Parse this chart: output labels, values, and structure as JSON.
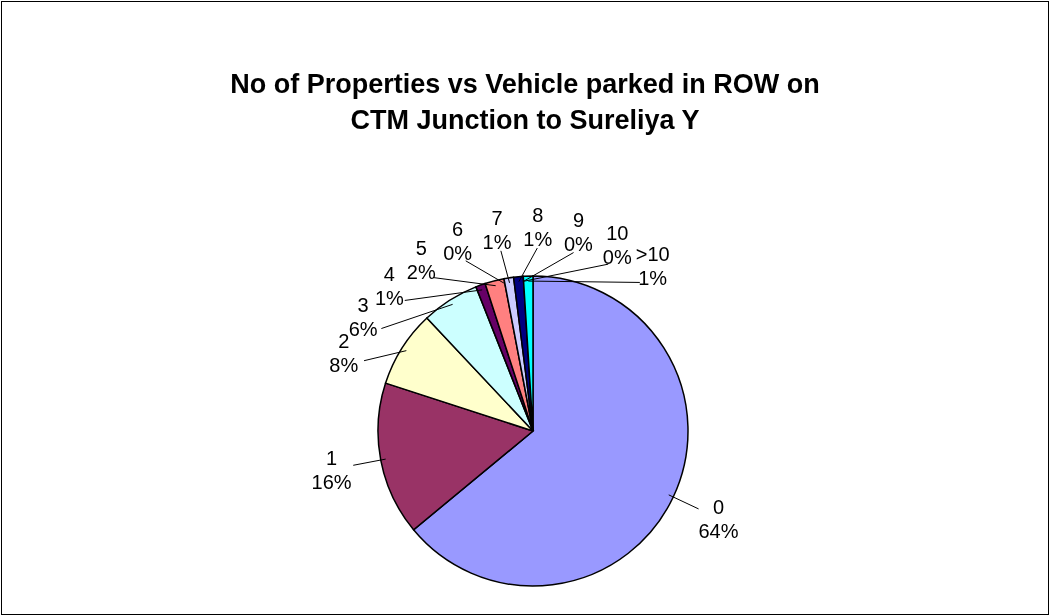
{
  "chart_data": {
    "type": "pie",
    "title": "No of Properties vs Vehicle parked in ROW on CTM Junction to Sureliya Y",
    "categories": [
      "0",
      "1",
      "2",
      "3",
      "4",
      "5",
      "6",
      "7",
      "8",
      "9",
      "10",
      ">10"
    ],
    "values": [
      64,
      16,
      8,
      6,
      1,
      2,
      0,
      1,
      1,
      0,
      0,
      1
    ],
    "value_labels": [
      "64%",
      "16%",
      "8%",
      "6%",
      "1%",
      "2%",
      "0%",
      "1%",
      "1%",
      "0%",
      "0%",
      "1%"
    ],
    "colors": [
      "#9999ff",
      "#993366",
      "#ffffcc",
      "#ccffff",
      "#660066",
      "#ff8080",
      "#0066cc",
      "#ccccff",
      "#000080",
      "#ff00ff",
      "#ffff00",
      "#00ffff"
    ]
  }
}
